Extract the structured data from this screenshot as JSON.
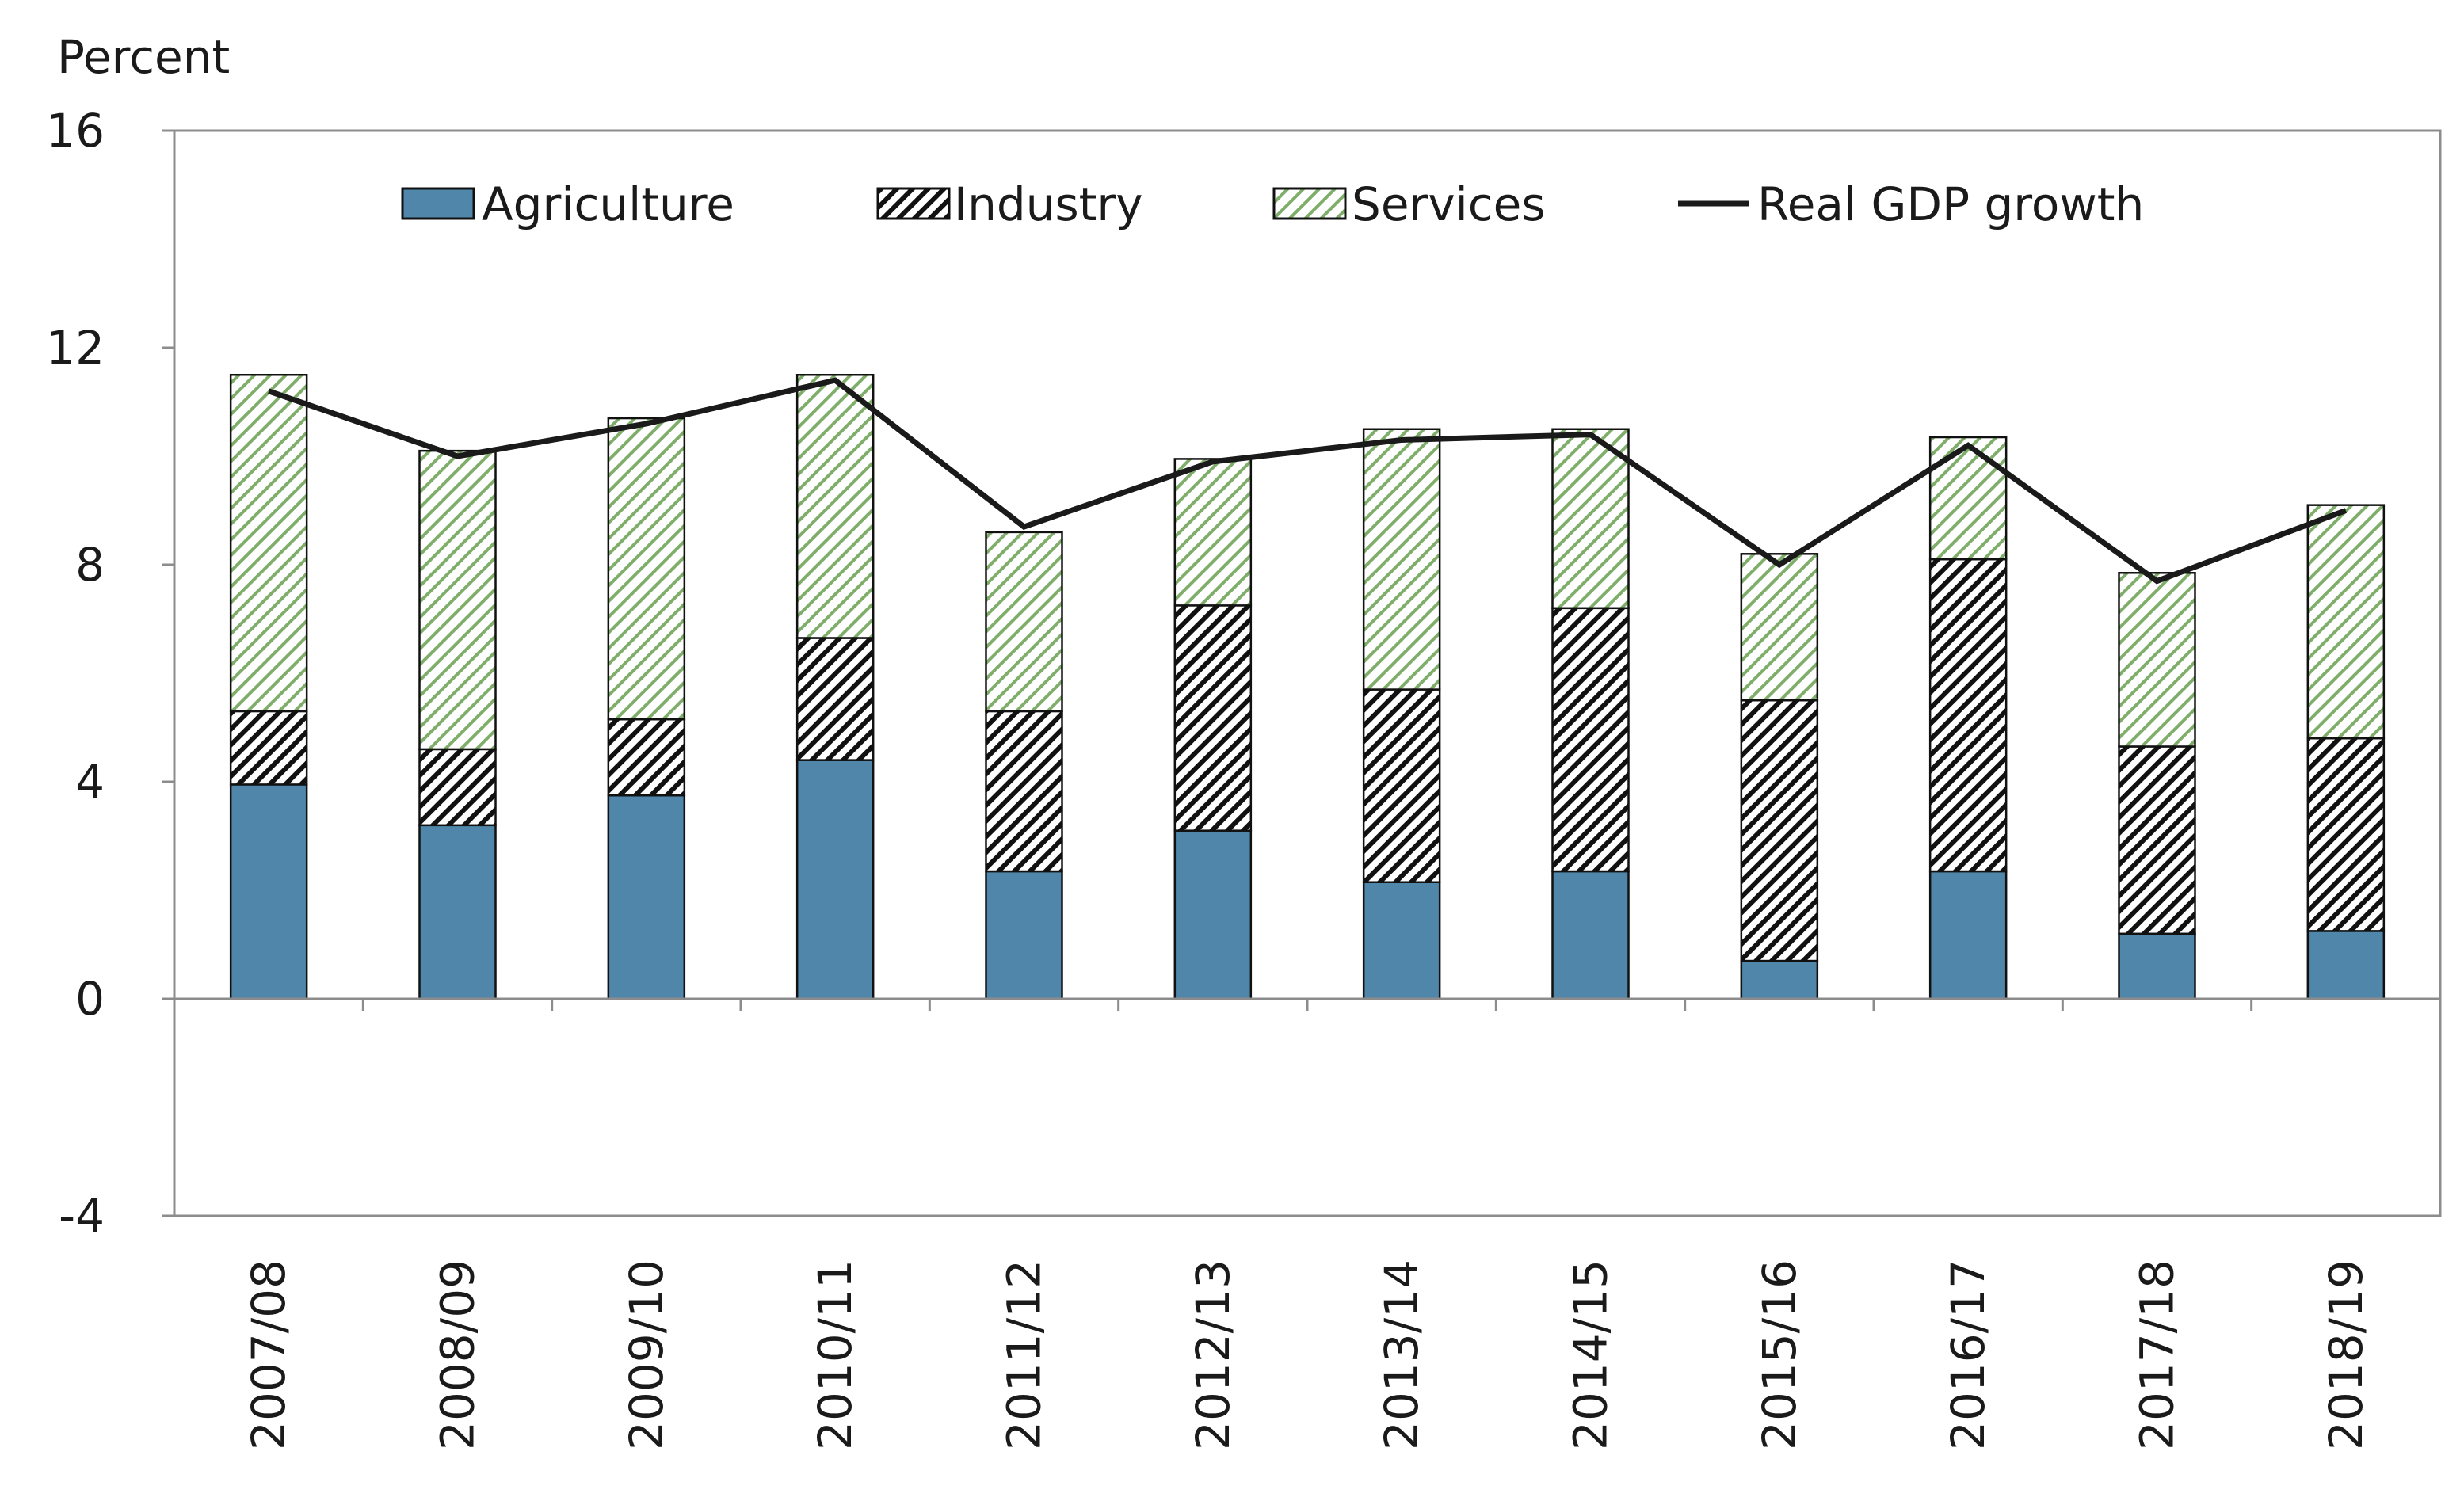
{
  "chart_data": {
    "type": "bar",
    "stacked": true,
    "unit_label": "Percent",
    "categories": [
      "2007/08",
      "2008/09",
      "2009/10",
      "2010/11",
      "2011/12",
      "2012/13",
      "2013/14",
      "2014/15",
      "2015/16",
      "2016/17",
      "2017/18",
      "2018/19"
    ],
    "series": [
      {
        "name": "Agriculture",
        "kind": "bar",
        "color": "#4f86a9",
        "pattern": "solid",
        "values": [
          3.95,
          3.2,
          3.75,
          4.4,
          2.35,
          3.1,
          2.15,
          2.35,
          0.7,
          2.35,
          1.2,
          1.25
        ]
      },
      {
        "name": "Industry",
        "kind": "bar",
        "color": "#000000",
        "pattern": "diagonal-hatch",
        "values": [
          1.35,
          1.4,
          1.4,
          2.25,
          2.95,
          4.15,
          3.55,
          4.85,
          4.8,
          5.75,
          3.45,
          3.55
        ]
      },
      {
        "name": "Services",
        "kind": "bar",
        "color": "#7fae6a",
        "pattern": "light-diagonal-hatch",
        "values": [
          6.2,
          5.5,
          5.55,
          4.85,
          3.3,
          2.7,
          4.8,
          3.3,
          2.7,
          2.25,
          3.2,
          4.3
        ]
      },
      {
        "name": "Real GDP growth",
        "kind": "line",
        "color": "#1a1a1a",
        "values": [
          11.2,
          10.0,
          10.6,
          11.4,
          8.7,
          9.9,
          10.3,
          10.4,
          8.0,
          10.2,
          7.7,
          9.0
        ]
      }
    ],
    "ylim": [
      -4,
      16
    ],
    "yticks": [
      -4,
      0,
      4,
      8,
      12,
      16
    ],
    "grid": false,
    "legend_position": "top-inside"
  }
}
